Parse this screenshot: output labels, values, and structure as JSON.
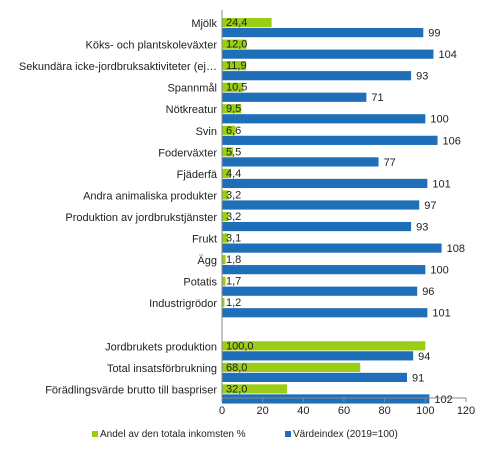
{
  "chart_data": {
    "type": "bar",
    "orientation": "horizontal",
    "categories": [
      "Mjölk",
      "Köks- och plantskoleväxter",
      "Sekundära icke-jordbruksaktiviteter (ej…",
      "Spannmål",
      "Nötkreatur",
      "Svin",
      "Foderväxter",
      "Fjäderfä",
      "Andra animaliska produkter",
      "Produktion av jordbrukstjänster",
      "Frukt",
      "Ägg",
      "Potatis",
      "Industrigrödor",
      "",
      "Jordbrukets produktion",
      "Total insatsförbrukning",
      "Förädlingsvärde brutto till baspriser"
    ],
    "series": [
      {
        "name": "Andel av den totala inkomsten %",
        "color": "#9ACD14",
        "values": [
          24.4,
          12.0,
          11.9,
          10.5,
          9.5,
          6.6,
          5.5,
          4.4,
          3.2,
          3.2,
          3.1,
          1.8,
          1.7,
          1.2,
          null,
          100.0,
          68.0,
          32.0
        ],
        "labels": [
          "24,4",
          "12,0",
          "11,9",
          "10,5",
          "9,5",
          "6,6",
          "5,5",
          "4,4",
          "3,2",
          "3,2",
          "3,1",
          "1,8",
          "1,7",
          "1,2",
          "",
          "100,0",
          "68,0",
          "32,0"
        ]
      },
      {
        "name": "Värdeindex (2019=100)",
        "color": "#1F6FB8",
        "values": [
          99,
          104,
          93,
          71,
          100,
          106,
          77,
          101,
          97,
          93,
          108,
          100,
          96,
          101,
          null,
          94,
          91,
          102
        ],
        "labels": [
          "99",
          "104",
          "93",
          "71",
          "100",
          "106",
          "77",
          "101",
          "97",
          "93",
          "108",
          "100",
          "96",
          "101",
          "",
          "94",
          "91",
          "102"
        ]
      }
    ],
    "xlim": [
      0,
      120
    ],
    "xticks": [
      "0",
      "20",
      "40",
      "60",
      "80",
      "100",
      "120"
    ],
    "legend_position": "bottom",
    "grid": false
  }
}
